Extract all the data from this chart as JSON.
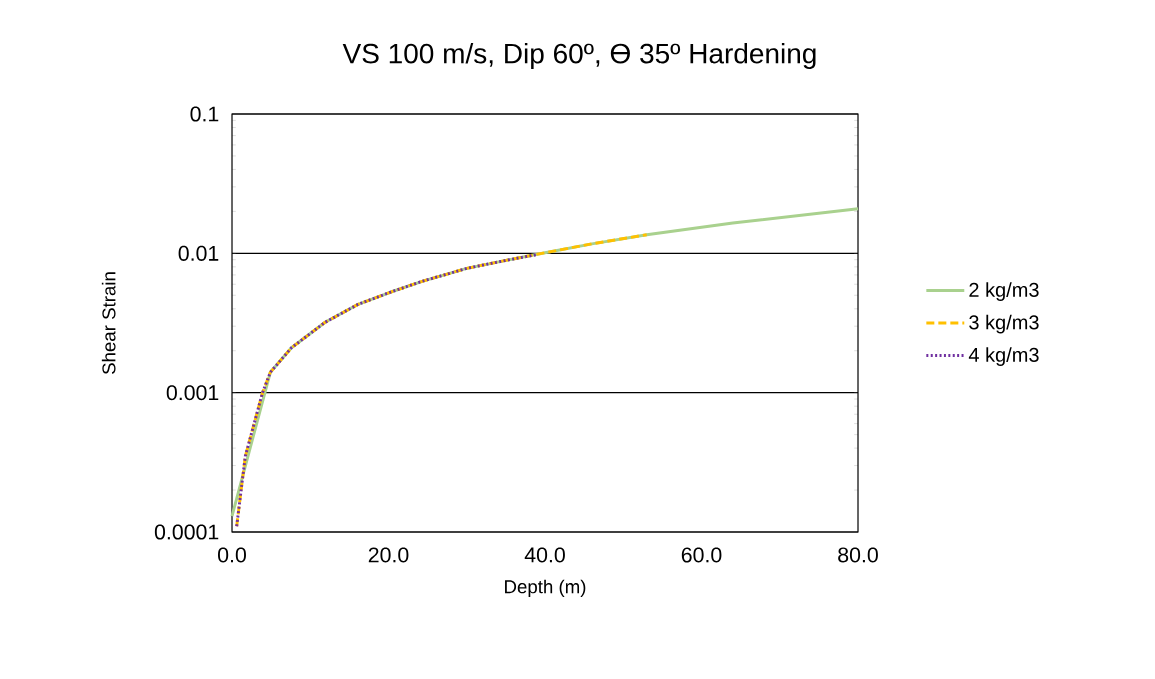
{
  "chart_data": {
    "type": "line",
    "title": "VS 100 m/s, Dip 60º, Ɵ 35º Hardening",
    "xlabel": "Depth (m)",
    "ylabel": "Shear Strain",
    "xlim": [
      0,
      80
    ],
    "ylim": [
      0.0001,
      0.1
    ],
    "log": "y",
    "grid": "y",
    "legend": "right",
    "xticks": [
      {
        "value": 0,
        "label": "0.0"
      },
      {
        "value": 20,
        "label": "20.0"
      },
      {
        "value": 40,
        "label": "40.0"
      },
      {
        "value": 60,
        "label": "60.0"
      },
      {
        "value": 80,
        "label": "80.0"
      }
    ],
    "yticks": [
      {
        "value": 0.0001,
        "label": "0.0001"
      },
      {
        "value": 0.001,
        "label": "0.001"
      },
      {
        "value": 0.01,
        "label": "0.01"
      },
      {
        "value": 0.1,
        "label": "0.1"
      }
    ],
    "series": [
      {
        "name": "2 kg/m3",
        "color": "#a9d18e",
        "line_style": "solid",
        "x": [
          0,
          4.9,
          7.6,
          11.9,
          16.1,
          20.4,
          24.3,
          30,
          35,
          40,
          46,
          53,
          64,
          80
        ],
        "values": [
          0.00013,
          0.0014,
          0.0021,
          0.0032,
          0.0043,
          0.0053,
          0.0063,
          0.0078,
          0.0089,
          0.0101,
          0.0117,
          0.0136,
          0.0165,
          0.0209
        ]
      },
      {
        "name": "3 kg/m3",
        "color": "#ffc000",
        "line_style": "dashed",
        "x": [
          0.6,
          1.7,
          3.9,
          4.9,
          7.6,
          11.9,
          16.1,
          20.4,
          24.3,
          30,
          35,
          40,
          46,
          53
        ],
        "values": [
          0.00011,
          0.00035,
          0.001,
          0.0014,
          0.0021,
          0.0032,
          0.0043,
          0.0053,
          0.0063,
          0.0078,
          0.0089,
          0.0101,
          0.0117,
          0.0136
        ]
      },
      {
        "name": "4 kg/m3",
        "color": "#7030a0",
        "line_style": "dotted",
        "x": [
          0.6,
          1.7,
          3.9,
          4.9,
          7.6,
          11.9,
          16.1,
          20.4,
          24.3,
          30,
          35,
          39
        ],
        "values": [
          0.00011,
          0.00035,
          0.001,
          0.0014,
          0.0021,
          0.0032,
          0.0043,
          0.0053,
          0.0063,
          0.0078,
          0.0089,
          0.0098
        ]
      }
    ]
  }
}
